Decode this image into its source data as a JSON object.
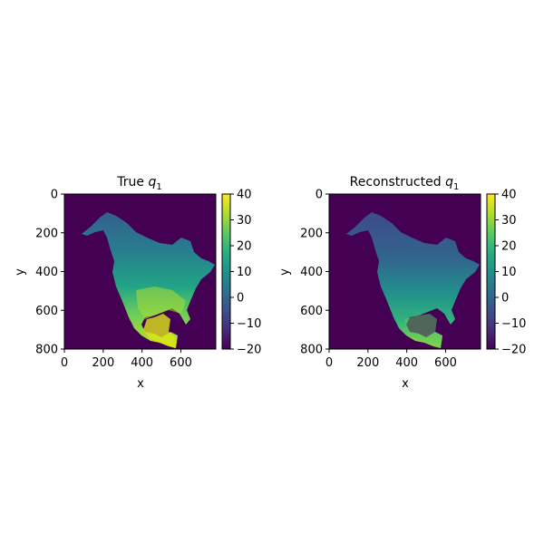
{
  "chart_data": [
    {
      "type": "heatmap",
      "title_main": "True ",
      "title_var": "q",
      "title_sub": "1",
      "xlabel": "x",
      "ylabel": "y",
      "xlim": [
        0,
        780
      ],
      "ylim": [
        800,
        0
      ],
      "xticks": [
        0,
        200,
        400,
        600
      ],
      "yticks": [
        0,
        200,
        400,
        600,
        800
      ],
      "colorbar": {
        "cmap": "viridis",
        "min": -20,
        "max": 40,
        "ticks": [
          40,
          30,
          20,
          10,
          0,
          -10,
          -20
        ]
      },
      "background_value": -20,
      "content": "North America temperature field (warm south, cooler north)"
    },
    {
      "type": "heatmap",
      "title_main": "Reconstructed ",
      "title_var": "q",
      "title_sub": "1",
      "xlabel": "x",
      "ylabel": "y",
      "xlim": [
        0,
        780
      ],
      "ylim": [
        800,
        0
      ],
      "xticks": [
        0,
        200,
        400,
        600
      ],
      "yticks": [
        0,
        200,
        400,
        600,
        800
      ],
      "colorbar": {
        "cmap": "viridis",
        "min": -20,
        "max": 40,
        "ticks": [
          40,
          30,
          20,
          10,
          0,
          -10,
          -20
        ]
      },
      "background_value": -20,
      "content": "North America reconstructed field (smoother, cooler)"
    }
  ],
  "colors": {
    "viridis_min": "#440154",
    "viridis_max": "#fde725"
  }
}
